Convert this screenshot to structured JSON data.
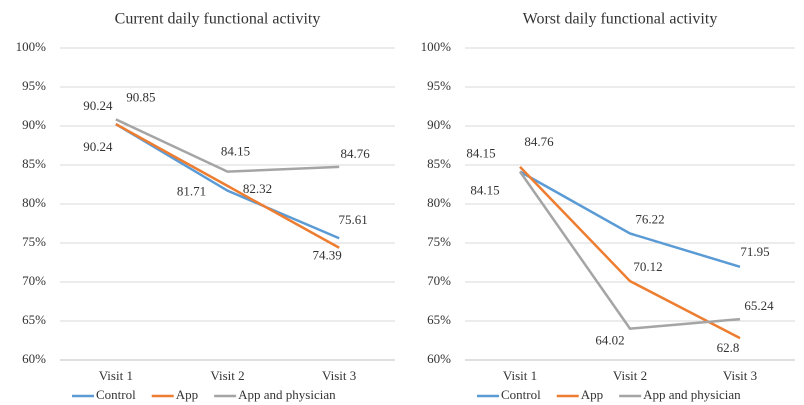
{
  "chart_data": [
    {
      "type": "line",
      "title": "Current daily functional activity",
      "categories": [
        "Visit 1",
        "Visit 2",
        "Visit 3"
      ],
      "series": [
        {
          "name": "Control",
          "color": "#5b9bd5",
          "values": [
            90.24,
            81.71,
            75.61
          ]
        },
        {
          "name": "App",
          "color": "#ed7d31",
          "values": [
            90.24,
            82.32,
            74.39
          ]
        },
        {
          "name": "App and physician",
          "color": "#a5a5a5",
          "values": [
            90.85,
            84.15,
            84.76
          ]
        }
      ],
      "ylim": [
        60,
        100
      ],
      "yticks": [
        {
          "value": 60,
          "label": "60%"
        },
        {
          "value": 65,
          "label": "65%"
        },
        {
          "value": 70,
          "label": "70%"
        },
        {
          "value": 75,
          "label": "75%"
        },
        {
          "value": 80,
          "label": "80%"
        },
        {
          "value": 85,
          "label": "85%"
        },
        {
          "value": 90,
          "label": "90%"
        },
        {
          "value": 95,
          "label": "95%"
        },
        {
          "value": 100,
          "label": "100%"
        }
      ],
      "grid": true,
      "legend": "bottom"
    },
    {
      "type": "line",
      "title": "Worst daily functional activity",
      "categories": [
        "Visit 1",
        "Visit 2",
        "Visit 3"
      ],
      "series": [
        {
          "name": "Control",
          "color": "#5b9bd5",
          "values": [
            84.15,
            76.22,
            71.95
          ]
        },
        {
          "name": "App",
          "color": "#ed7d31",
          "values": [
            84.76,
            70.12,
            62.8
          ]
        },
        {
          "name": "App and physician",
          "color": "#a5a5a5",
          "values": [
            84.15,
            64.02,
            65.24
          ]
        }
      ],
      "ylim": [
        60,
        100
      ],
      "yticks": [
        {
          "value": 60,
          "label": "60%"
        },
        {
          "value": 65,
          "label": "65%"
        },
        {
          "value": 70,
          "label": "70%"
        },
        {
          "value": 75,
          "label": "75%"
        },
        {
          "value": 80,
          "label": "80%"
        },
        {
          "value": 85,
          "label": "85%"
        },
        {
          "value": 90,
          "label": "90%"
        },
        {
          "value": 95,
          "label": "95%"
        },
        {
          "value": 100,
          "label": "100%"
        }
      ],
      "grid": true,
      "legend": "bottom"
    }
  ]
}
